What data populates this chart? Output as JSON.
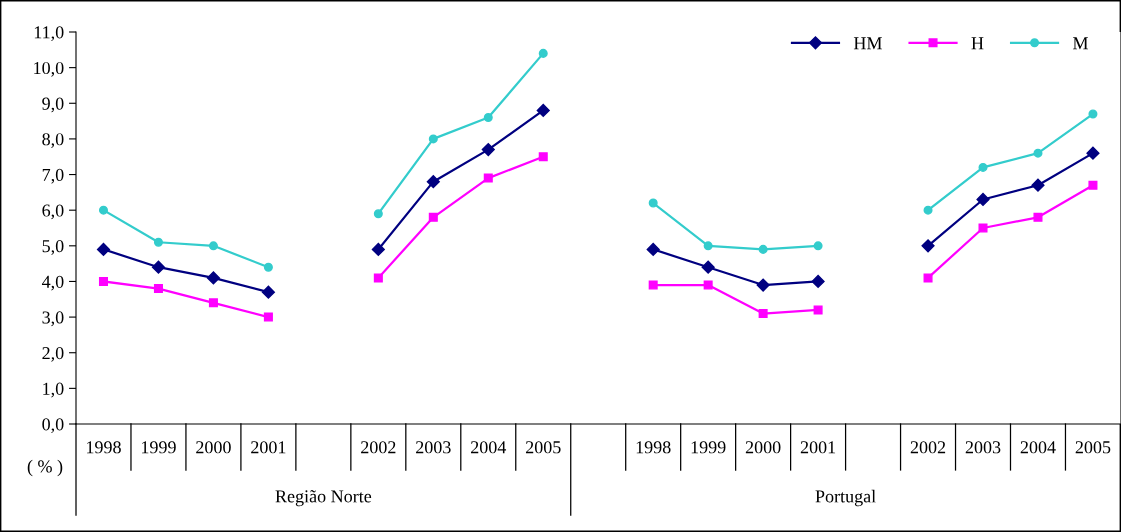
{
  "chart_data": {
    "type": "line",
    "categories": [
      "1998",
      "1999",
      "2000",
      "2001",
      null,
      "2002",
      "2003",
      "2004",
      "2005",
      null,
      "1998",
      "1999",
      "2000",
      "2001",
      null,
      "2002",
      "2003",
      "2004",
      "2005"
    ],
    "series": [
      {
        "name": "HM",
        "color": "#000080",
        "marker": "diamond",
        "values": [
          4.9,
          4.4,
          4.1,
          3.7,
          null,
          4.9,
          6.8,
          7.7,
          8.8,
          null,
          4.9,
          4.4,
          3.9,
          4.0,
          null,
          5.0,
          6.3,
          6.7,
          7.6
        ]
      },
      {
        "name": "H",
        "color": "#ff00ff",
        "marker": "square",
        "values": [
          4.0,
          3.8,
          3.4,
          3.0,
          null,
          4.1,
          5.8,
          6.9,
          7.5,
          null,
          3.9,
          3.9,
          3.1,
          3.2,
          null,
          4.1,
          5.5,
          5.8,
          6.7
        ]
      },
      {
        "name": "M",
        "color": "#33cccc",
        "marker": "circle",
        "values": [
          6.0,
          5.1,
          5.0,
          4.4,
          null,
          5.9,
          8.0,
          8.6,
          10.4,
          null,
          6.2,
          5.0,
          4.9,
          5.0,
          null,
          6.0,
          7.2,
          7.6,
          8.7
        ]
      }
    ],
    "ylabel": "( % )",
    "annotations": [
      "Região Norte",
      "Portugal"
    ],
    "ylim": [
      0,
      11
    ],
    "yticks": [
      {
        "value": 0,
        "label": "0,0"
      },
      {
        "value": 1,
        "label": "1,0"
      },
      {
        "value": 2,
        "label": "2,0"
      },
      {
        "value": 3,
        "label": "3,0"
      },
      {
        "value": 4,
        "label": "4,0"
      },
      {
        "value": 5,
        "label": "5,0"
      },
      {
        "value": 6,
        "label": "6,0"
      },
      {
        "value": 7,
        "label": "7,0"
      },
      {
        "value": 8,
        "label": "8,0"
      },
      {
        "value": 9,
        "label": "9,0"
      },
      {
        "value": 10,
        "label": "10,0"
      },
      {
        "value": 11,
        "label": "11,0"
      }
    ],
    "grid": false,
    "legend": "top right",
    "line_style": "solid"
  }
}
